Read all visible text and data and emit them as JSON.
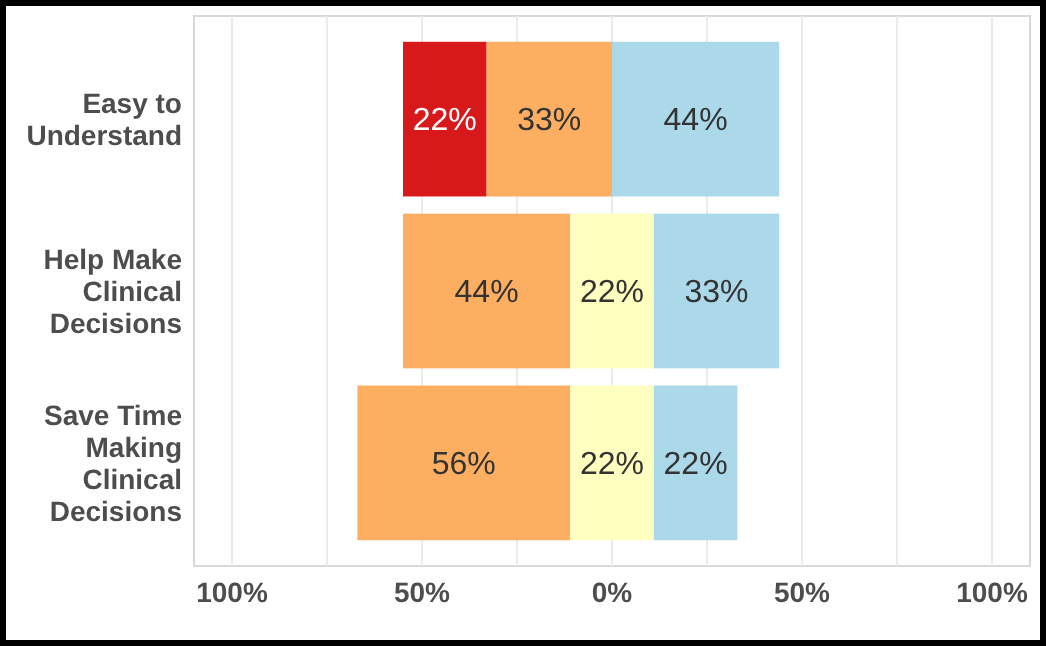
{
  "chart_data": {
    "type": "bar",
    "orientation": "horizontal",
    "categories": [
      "Easy to Understand",
      "Help Make Clinical Decisions",
      "Save Time Making Clinical Decisions"
    ],
    "series": [
      {
        "color": "#d7191c",
        "base": [
          -55,
          null,
          null
        ],
        "values": [
          22,
          null,
          null
        ],
        "value_labels": [
          "22%",
          null,
          null
        ]
      },
      {
        "color": "#fdae61",
        "base": [
          -33,
          -55,
          -67
        ],
        "values": [
          33,
          44,
          56
        ],
        "value_labels": [
          "33%",
          "44%",
          "56%"
        ]
      },
      {
        "color": "#ffffbf",
        "base": [
          null,
          -11,
          -11
        ],
        "values": [
          null,
          22,
          22
        ],
        "value_labels": [
          null,
          "22%",
          "22%"
        ]
      },
      {
        "color": "#abd9e9",
        "base": [
          0,
          11,
          11
        ],
        "values": [
          44,
          33,
          22
        ],
        "value_labels": [
          "44%",
          "33%",
          "22%"
        ]
      }
    ],
    "xlim": [
      -110,
      110
    ],
    "xticks": [
      {
        "value": -100,
        "label": "100%"
      },
      {
        "value": -75,
        "label": null
      },
      {
        "value": -50,
        "label": "50%"
      },
      {
        "value": -25,
        "label": null
      },
      {
        "value": 0,
        "label": "0%"
      },
      {
        "value": 25,
        "label": null
      },
      {
        "value": 50,
        "label": "50%"
      },
      {
        "value": 75,
        "label": null
      },
      {
        "value": 100,
        "label": "100%"
      }
    ],
    "grid": "x"
  }
}
